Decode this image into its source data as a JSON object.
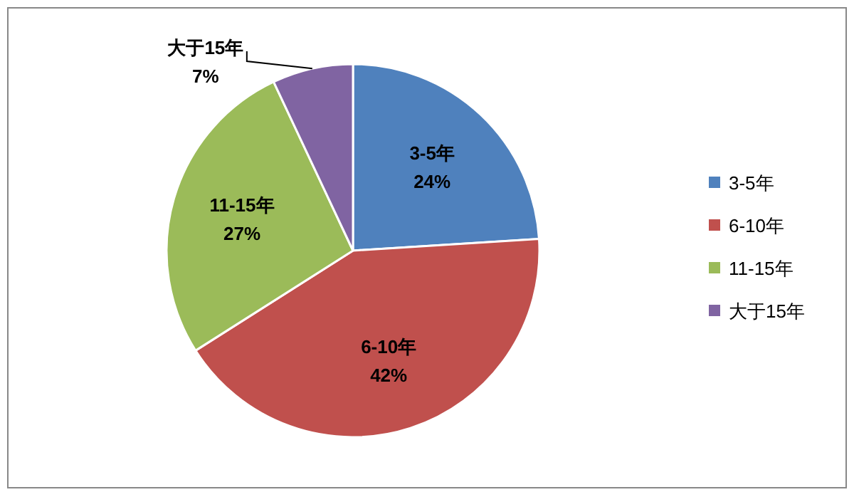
{
  "chart_data": {
    "type": "pie",
    "categories": [
      "3-5年",
      "6-10年",
      "11-15年",
      "大于15年"
    ],
    "values": [
      24,
      42,
      27,
      7
    ],
    "colors": [
      "#4f81bd",
      "#c0504d",
      "#9bbb59",
      "#8064a2"
    ],
    "value_labels": [
      "24%",
      "42%",
      "27%",
      "7%"
    ],
    "legend": "right"
  }
}
